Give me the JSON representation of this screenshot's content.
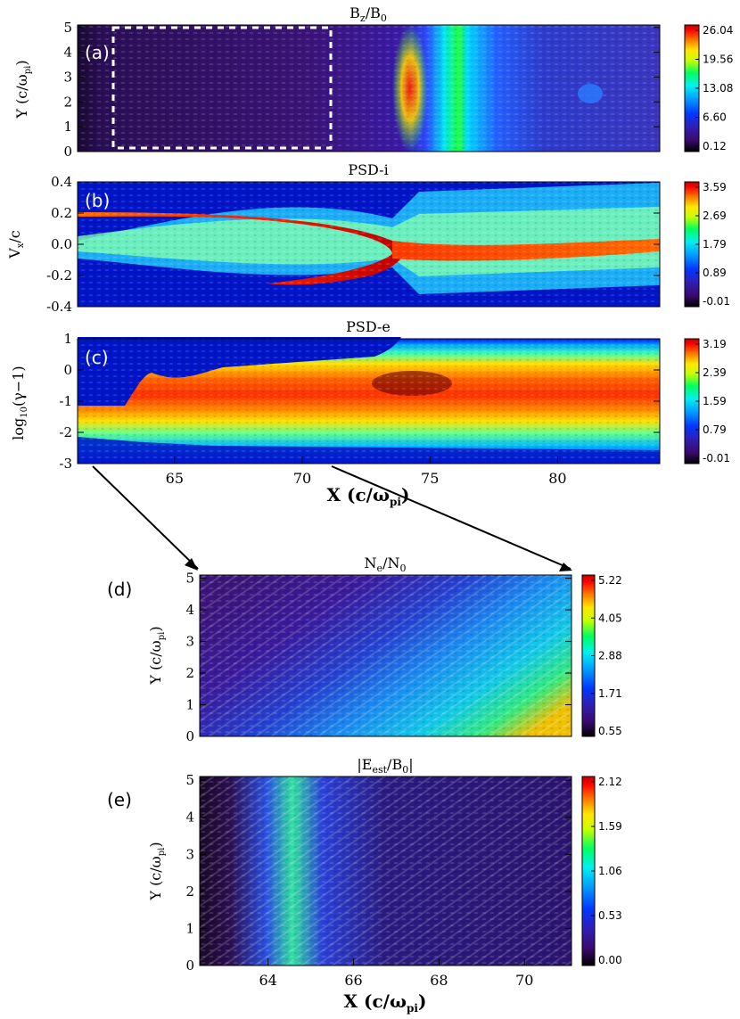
{
  "colors": {
    "colormap": [
      "#000000",
      "#3a0a6e",
      "#2f1fb8",
      "#0038ff",
      "#00a0ff",
      "#00f0f0",
      "#00ff60",
      "#c8ff00",
      "#ffe600",
      "#ff7a00",
      "#ff0000",
      "#c00000"
    ],
    "axis": "#000000",
    "dashed_box": "#ffffff"
  },
  "chart_data": [
    {
      "id": "a",
      "type": "heatmap",
      "panel_label": "(a)",
      "title": "B_z/B_0",
      "xlabel": "",
      "ylabel": "Y (c/ω_pi)",
      "xlim": [
        61.2,
        84
      ],
      "ylim": [
        0,
        5.1
      ],
      "yticks": [
        "0",
        "1",
        "2",
        "3",
        "4",
        "5"
      ],
      "xticks": [],
      "colorbar_ticks": [
        "26.04",
        "19.56",
        "13.08",
        "6.60",
        "0.12"
      ],
      "annotation": "dashed box from X≈62.4 to X≈71.1, full Y range",
      "description": "shock front near X≈74 with peak Bz ≈ 26"
    },
    {
      "id": "b",
      "type": "heatmap",
      "panel_label": "(b)",
      "title": "PSD-i",
      "xlabel": "",
      "ylabel": "V_x/c",
      "xlim": [
        61.2,
        84
      ],
      "ylim": [
        -0.4,
        0.4
      ],
      "yticks": [
        "0.4",
        "0.2",
        "0.0",
        "-0.2",
        "-0.4"
      ],
      "xticks": [],
      "colorbar_ticks": [
        "3.59",
        "2.69",
        "1.79",
        "0.89",
        "-0.01"
      ]
    },
    {
      "id": "c",
      "type": "heatmap",
      "panel_label": "(c)",
      "title": "PSD-e",
      "xlabel": "X (c/ω_pi)",
      "ylabel": "log10(γ-1)",
      "xlim": [
        61.2,
        84
      ],
      "ylim": [
        -3,
        1
      ],
      "yticks": [
        "1",
        "0",
        "-1",
        "-2",
        "-3"
      ],
      "xticks": [
        "65",
        "70",
        "75",
        "80"
      ],
      "colorbar_ticks": [
        "3.19",
        "2.39",
        "1.59",
        "0.79",
        "-0.01"
      ]
    },
    {
      "id": "d",
      "type": "heatmap",
      "panel_label": "(d)",
      "title": "N_e/N_0",
      "xlabel": "",
      "ylabel": "Y (c/ω_pi)",
      "xlim": [
        62.4,
        71.1
      ],
      "ylim": [
        0,
        5.1
      ],
      "yticks": [
        "5",
        "4",
        "3",
        "2",
        "1",
        "0"
      ],
      "xticks": [],
      "colorbar_ticks": [
        "5.22",
        "4.05",
        "2.88",
        "1.71",
        "0.55"
      ]
    },
    {
      "id": "e",
      "type": "heatmap",
      "panel_label": "(e)",
      "title": "|E_est/B_0|",
      "xlabel": "X (c/ω_pi)",
      "ylabel": "Y (c/ω_pi)",
      "xlim": [
        62.4,
        71.1
      ],
      "ylim": [
        0,
        5.1
      ],
      "yticks": [
        "5",
        "4",
        "3",
        "2",
        "1",
        "0"
      ],
      "xticks": [
        "64",
        "66",
        "68",
        "70"
      ],
      "colorbar_ticks": [
        "2.12",
        "1.59",
        "1.06",
        "0.53",
        "0.00"
      ]
    }
  ]
}
